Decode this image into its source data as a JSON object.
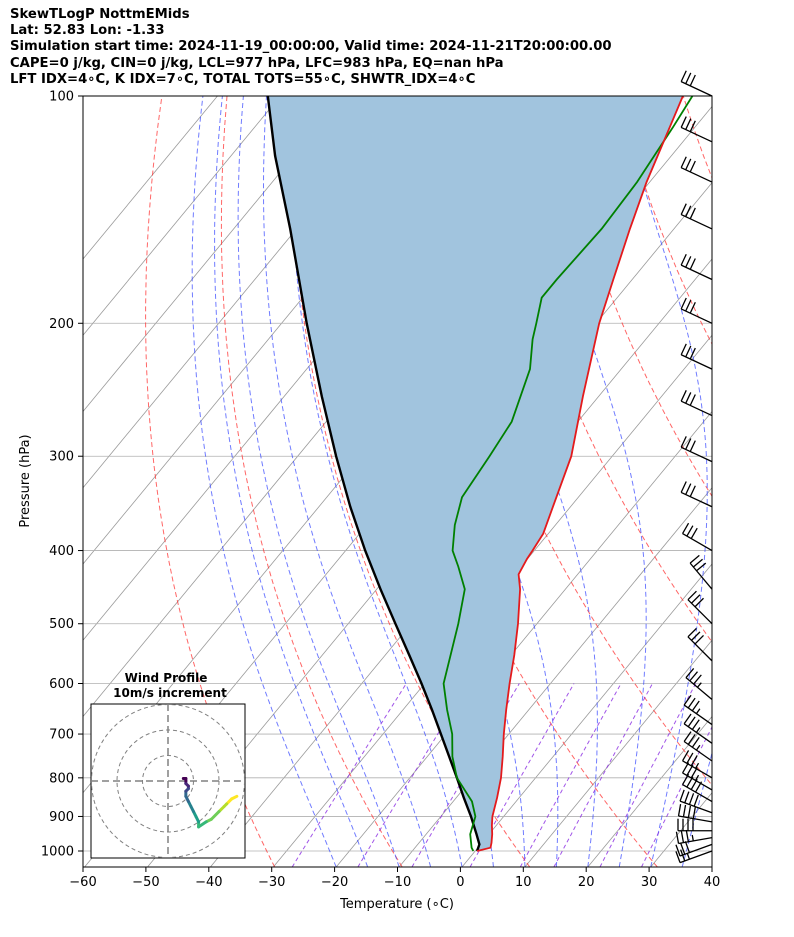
{
  "header": {
    "line1": "SkewTLogP NottmEMids",
    "line2": "Lat: 52.83   Lon: -1.33",
    "line3": "Simulation start time: 2024-11-19_00:00:00, Valid time: 2024-11-21T20:00:00.00",
    "line4": "CAPE=0 j/kg, CIN=0 j/kg, LCL=977 hPa, LFC=983 hPa, EQ=nan hPa",
    "line5": "LFT IDX=4∘C, K IDX=7∘C, TOTAL TOTS=55∘C, SHWTR_IDX=4∘C"
  },
  "inset": {
    "title": "Wind Profile",
    "subtitle": "10m/s increment"
  },
  "colors": {
    "temperature": "#e41a1c",
    "dewpoint": "#008000",
    "parcel": "#000000",
    "cape_fill": "#a1c4de",
    "dry_adiabat": "#ff3333",
    "moist_adiabat": "#3344ff",
    "mixing_ratio": "#8a2be2",
    "isotherm": "#9a9a9a"
  },
  "chart_data": {
    "type": "line",
    "title": "",
    "xlabel": "Temperature (∘C)",
    "ylabel": "Pressure (hPa)",
    "xlim": [
      -60,
      40
    ],
    "ylim": [
      1050,
      100
    ],
    "y_scale": "log",
    "grid": true,
    "x_ticks": [
      -60,
      -50,
      -40,
      -30,
      -20,
      -10,
      0,
      10,
      20,
      30,
      40
    ],
    "x_tick_labels": [
      "−60",
      "−50",
      "−40",
      "−30",
      "−20",
      "−10",
      "0",
      "10",
      "20",
      "30",
      "40"
    ],
    "y_ticks": [
      1000,
      900,
      800,
      700,
      600,
      500,
      400,
      300,
      200,
      100
    ],
    "y_tick_labels": [
      "1000",
      "900",
      "800",
      "700",
      "600",
      "500",
      "400",
      "300",
      "200",
      "100"
    ],
    "series": [
      {
        "key": "temperature",
        "points": [
          [
            1000,
            0.3
          ],
          [
            990,
            2.0
          ],
          [
            975,
            1.5
          ],
          [
            950,
            0.5
          ],
          [
            925,
            -0.7
          ],
          [
            900,
            -1.8
          ],
          [
            850,
            -3.5
          ],
          [
            800,
            -5.5
          ],
          [
            750,
            -8.0
          ],
          [
            700,
            -10.8
          ],
          [
            650,
            -13.6
          ],
          [
            600,
            -16.5
          ],
          [
            550,
            -19.5
          ],
          [
            500,
            -23.0
          ],
          [
            450,
            -27.2
          ],
          [
            430,
            -29.4
          ],
          [
            410,
            -30.1
          ],
          [
            400,
            -30.3
          ],
          [
            380,
            -30.8
          ],
          [
            350,
            -32.8
          ],
          [
            300,
            -36.5
          ],
          [
            250,
            -42.5
          ],
          [
            200,
            -49.5
          ],
          [
            175,
            -53.0
          ],
          [
            150,
            -57.0
          ],
          [
            130,
            -60.5
          ],
          [
            110,
            -64.0
          ],
          [
            100,
            -66.0
          ]
        ]
      },
      {
        "key": "dewpoint",
        "points": [
          [
            1000,
            -0.3
          ],
          [
            990,
            -1.0
          ],
          [
            950,
            -3.0
          ],
          [
            900,
            -4.5
          ],
          [
            860,
            -7.0
          ],
          [
            800,
            -12.5
          ],
          [
            750,
            -16.0
          ],
          [
            700,
            -19.0
          ],
          [
            650,
            -23.0
          ],
          [
            600,
            -27.0
          ],
          [
            500,
            -32.5
          ],
          [
            450,
            -36.0
          ],
          [
            420,
            -40.0
          ],
          [
            400,
            -43.0
          ],
          [
            370,
            -46.0
          ],
          [
            340,
            -48.5
          ],
          [
            300,
            -49.5
          ],
          [
            270,
            -50.5
          ],
          [
            230,
            -54.5
          ],
          [
            210,
            -58.0
          ],
          [
            200,
            -59.5
          ],
          [
            185,
            -62.0
          ],
          [
            175,
            -62.0
          ],
          [
            150,
            -61.5
          ],
          [
            130,
            -62.0
          ],
          [
            110,
            -63.5
          ],
          [
            100,
            -64.5
          ]
        ]
      },
      {
        "key": "parcel",
        "points": [
          [
            1000,
            0.3
          ],
          [
            980,
            -0.2
          ],
          [
            950,
            -2.0
          ],
          [
            900,
            -5.2
          ],
          [
            850,
            -8.8
          ],
          [
            800,
            -12.5
          ],
          [
            750,
            -16.5
          ],
          [
            700,
            -20.8
          ],
          [
            650,
            -25.4
          ],
          [
            600,
            -30.5
          ],
          [
            550,
            -36.2
          ],
          [
            500,
            -42.5
          ],
          [
            450,
            -49.4
          ],
          [
            400,
            -56.9
          ],
          [
            350,
            -65.0
          ],
          [
            300,
            -73.9
          ],
          [
            250,
            -84.0
          ],
          [
            200,
            -96.0
          ],
          [
            150,
            -111.0
          ],
          [
            120,
            -123.0
          ],
          [
            100,
            -132.0
          ]
        ]
      }
    ],
    "wind_barbs": [
      {
        "p": 1000,
        "speed_kt": 25,
        "dir": 250
      },
      {
        "p": 980,
        "speed_kt": 30,
        "dir": 250
      },
      {
        "p": 960,
        "speed_kt": 35,
        "dir": 260
      },
      {
        "p": 940,
        "speed_kt": 40,
        "dir": 270
      },
      {
        "p": 915,
        "speed_kt": 40,
        "dir": 280
      },
      {
        "p": 890,
        "speed_kt": 40,
        "dir": 290
      },
      {
        "p": 860,
        "speed_kt": 40,
        "dir": 300
      },
      {
        "p": 830,
        "speed_kt": 35,
        "dir": 300
      },
      {
        "p": 800,
        "speed_kt": 35,
        "dir": 300
      },
      {
        "p": 760,
        "speed_kt": 35,
        "dir": 305
      },
      {
        "p": 720,
        "speed_kt": 35,
        "dir": 305
      },
      {
        "p": 680,
        "speed_kt": 35,
        "dir": 305
      },
      {
        "p": 630,
        "speed_kt": 35,
        "dir": 310
      },
      {
        "p": 560,
        "speed_kt": 30,
        "dir": 315
      },
      {
        "p": 500,
        "speed_kt": 30,
        "dir": 315
      },
      {
        "p": 450,
        "speed_kt": 30,
        "dir": 320
      },
      {
        "p": 400,
        "speed_kt": 30,
        "dir": 300
      },
      {
        "p": 350,
        "speed_kt": 30,
        "dir": 295
      },
      {
        "p": 305,
        "speed_kt": 30,
        "dir": 295
      },
      {
        "p": 265,
        "speed_kt": 30,
        "dir": 295
      },
      {
        "p": 230,
        "speed_kt": 30,
        "dir": 295
      },
      {
        "p": 200,
        "speed_kt": 30,
        "dir": 295
      },
      {
        "p": 175,
        "speed_kt": 30,
        "dir": 295
      },
      {
        "p": 150,
        "speed_kt": 30,
        "dir": 295
      },
      {
        "p": 130,
        "speed_kt": 30,
        "dir": 295
      },
      {
        "p": 115,
        "speed_kt": 30,
        "dir": 295
      },
      {
        "p": 100,
        "speed_kt": 30,
        "dir": 295
      }
    ],
    "hodograph": {
      "title": "Wind Profile",
      "subtitle": "10m/s increment",
      "ring_radii_ms": [
        10,
        20,
        30
      ],
      "points_ms": [
        [
          27,
          -6
        ],
        [
          25,
          -7
        ],
        [
          23,
          -9
        ],
        [
          22,
          -10
        ],
        [
          20,
          -12
        ],
        [
          17,
          -15
        ],
        [
          15,
          -16
        ],
        [
          12,
          -18
        ],
        [
          12,
          -16
        ],
        [
          11,
          -14
        ],
        [
          10,
          -12
        ],
        [
          9,
          -10
        ],
        [
          8,
          -8
        ],
        [
          7,
          -6
        ],
        [
          7,
          -4
        ],
        [
          8,
          -3
        ],
        [
          8,
          -2
        ],
        [
          7,
          -1
        ],
        [
          7,
          0
        ],
        [
          7,
          1
        ],
        [
          6,
          1
        ]
      ]
    }
  }
}
